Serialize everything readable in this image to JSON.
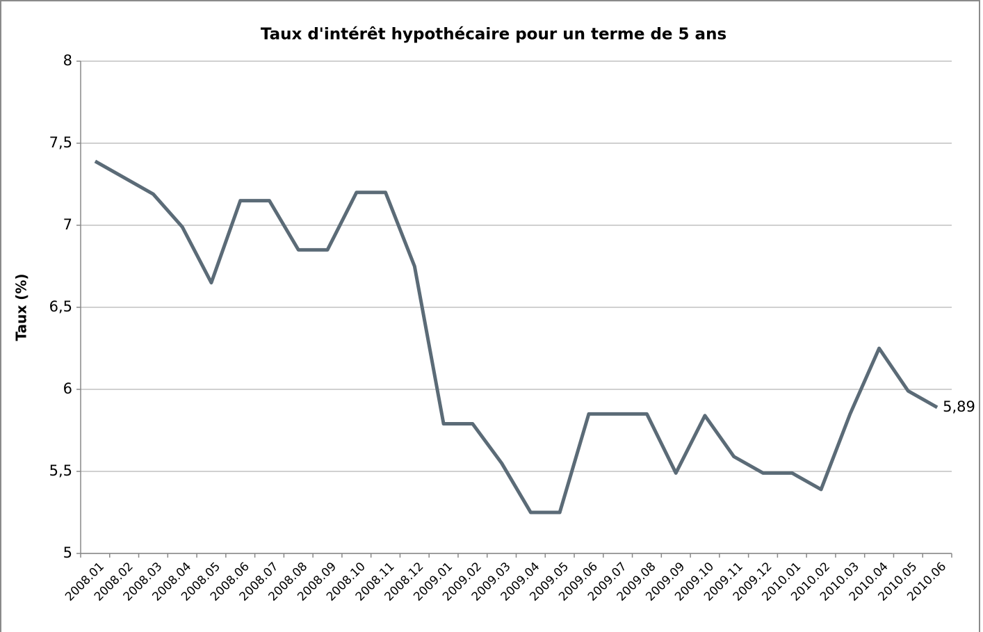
{
  "chart_data": {
    "type": "line",
    "title": "Taux d'intérêt hypothécaire pour un terme de 5 ans",
    "y_label": "Taux (%)",
    "categories": [
      "2008.01",
      "2008.02",
      "2008.03",
      "2008.04",
      "2008.05",
      "2008.06",
      "2008.07",
      "2008.08",
      "2008.09",
      "2008.10",
      "2008.11",
      "2008.12",
      "2009.01",
      "2009.02",
      "2009.03",
      "2009.04",
      "2009.05",
      "2009.06",
      "2009.07",
      "2009.08",
      "2009.09",
      "2009.10",
      "2009.11",
      "2009.12",
      "2010.01",
      "2010.02",
      "2010.03",
      "2010.04",
      "2010.05",
      "2010.06"
    ],
    "values": [
      7.39,
      7.29,
      7.19,
      6.99,
      6.65,
      7.15,
      7.15,
      6.85,
      6.85,
      7.2,
      7.2,
      6.75,
      5.79,
      5.79,
      5.55,
      5.25,
      5.25,
      5.85,
      5.85,
      5.85,
      5.49,
      5.84,
      5.59,
      5.49,
      5.49,
      5.39,
      5.85,
      6.25,
      5.99,
      5.89
    ],
    "value_labels": [
      null,
      null,
      null,
      null,
      null,
      null,
      null,
      null,
      null,
      null,
      null,
      null,
      null,
      null,
      null,
      null,
      null,
      null,
      null,
      null,
      null,
      null,
      null,
      null,
      null,
      null,
      null,
      null,
      null,
      "5,89"
    ],
    "color": "#5b6b77",
    "ylim": [
      5,
      8
    ],
    "yticks": [
      5,
      {
        "value": 5.5,
        "label": "5,5"
      },
      6,
      {
        "value": 6.5,
        "label": "6,5"
      },
      7,
      {
        "value": 7.5,
        "label": "7,5"
      },
      8
    ],
    "grid": true
  }
}
